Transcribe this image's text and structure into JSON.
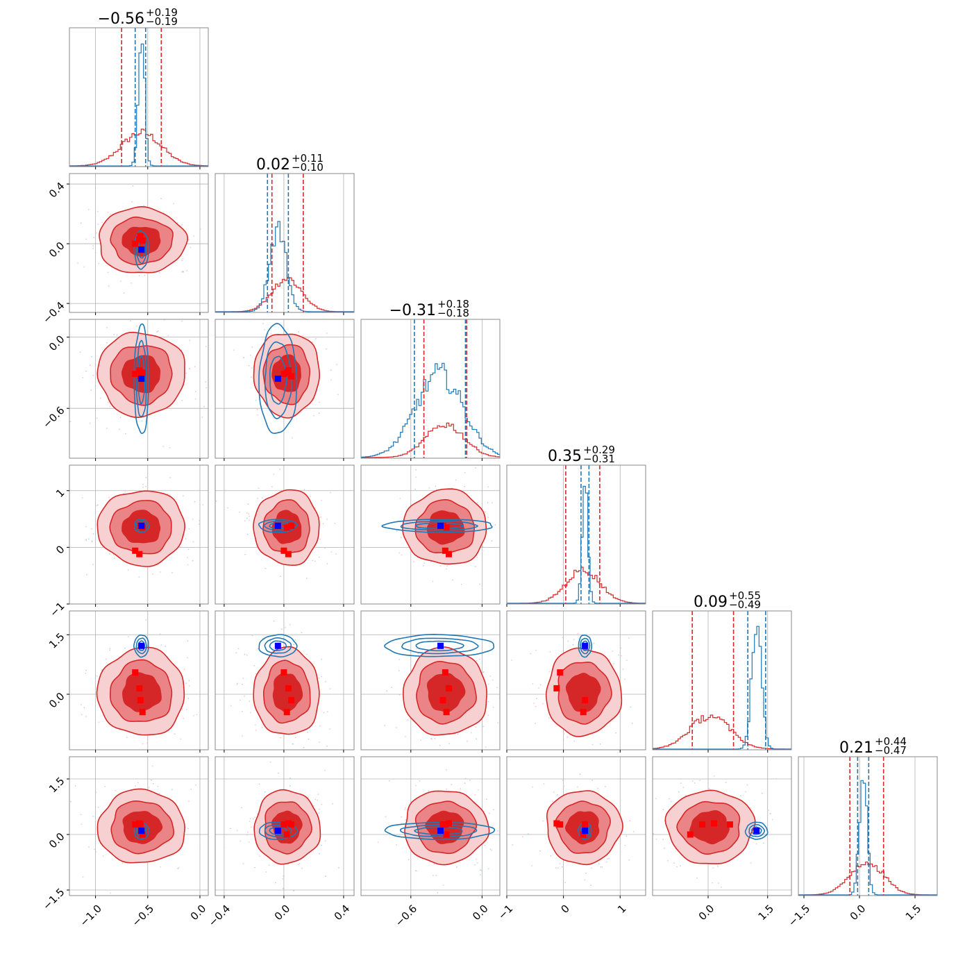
{
  "chart_data": {
    "type": "corner",
    "colors": {
      "red": "#d62728",
      "red_mid": "#ea8486",
      "red_light": "#f7d1d2",
      "blue": "#1f77b4",
      "blue_marker": "#0000ff",
      "red_marker": "#ff0000",
      "grid": "#b0b0b0"
    },
    "params": [
      {
        "range": [
          -1.25,
          0.08
        ],
        "ticks": [
          -1.0,
          -0.5,
          0.0
        ],
        "tick_labels": [
          "−1.0",
          "−0.5",
          "0.0"
        ],
        "title": {
          "median": "−0.56",
          "plus": "+0.19",
          "minus": "−0.19"
        },
        "red": {
          "mean": -0.56,
          "sd": 0.19,
          "q": [
            -0.75,
            -0.37
          ]
        },
        "blue": {
          "mean": -0.56,
          "sd": 0.03,
          "q": [
            -0.62,
            -0.52
          ]
        },
        "blue_marker": -0.56,
        "red_markers": [
          -0.62,
          -0.58,
          -0.57,
          -0.55
        ]
      },
      {
        "range": [
          -0.46,
          0.47
        ],
        "ticks": [
          -0.4,
          0.0,
          0.4
        ],
        "tick_labels": [
          "−0.4",
          "0.0",
          "0.4"
        ],
        "title": {
          "median": "0.02",
          "plus": "+0.11",
          "minus": "−0.10"
        },
        "red": {
          "mean": 0.02,
          "sd": 0.1,
          "q": [
            -0.08,
            0.13
          ]
        },
        "blue": {
          "mean": -0.04,
          "sd": 0.055,
          "q": [
            -0.11,
            0.03
          ]
        },
        "blue_marker": -0.04,
        "red_markers": [
          0.0,
          0.03,
          0.05,
          0.02
        ]
      },
      {
        "range": [
          -1.02,
          0.15
        ],
        "ticks": [
          -0.6,
          0.0
        ],
        "tick_labels": [
          "−0.6",
          "0.0"
        ],
        "title": {
          "median": "−0.31",
          "plus": "+0.18",
          "minus": "−0.18"
        },
        "red": {
          "mean": -0.31,
          "sd": 0.16,
          "q": [
            -0.49,
            -0.13
          ]
        },
        "blue": {
          "mean": -0.36,
          "sd": 0.2,
          "q": [
            -0.57,
            -0.14
          ]
        },
        "blue_marker": -0.35,
        "red_markers": [
          -0.31,
          -0.28,
          -0.33,
          -0.3
        ]
      },
      {
        "range": [
          -1.0,
          1.45
        ],
        "ticks": [
          -1,
          0,
          1
        ],
        "tick_labels": [
          "−1",
          "0",
          "1"
        ],
        "title": {
          "median": "0.35",
          "plus": "+0.29",
          "minus": "−0.31"
        },
        "red": {
          "mean": 0.35,
          "sd": 0.3,
          "q": [
            0.04,
            0.64
          ]
        },
        "blue": {
          "mean": 0.38,
          "sd": 0.05,
          "q": [
            0.31,
            0.45
          ]
        },
        "blue_marker": 0.38,
        "red_markers": [
          -0.06,
          -0.12,
          0.38,
          0.35
        ]
      },
      {
        "range": [
          -1.4,
          2.1
        ],
        "ticks": [
          0.0,
          1.5
        ],
        "tick_labels": [
          "0.0",
          "1.5"
        ],
        "title": {
          "median": "0.09",
          "plus": "+0.55",
          "minus": "−0.49"
        },
        "red": {
          "mean": 0.05,
          "sd": 0.5,
          "q": [
            -0.4,
            0.64
          ]
        },
        "blue": {
          "mean": 1.22,
          "sd": 0.12,
          "q": [
            1.0,
            1.45
          ]
        },
        "blue_marker": 1.22,
        "red_markers": [
          0.55,
          0.15,
          -0.15,
          -0.45
        ]
      },
      {
        "range": [
          -1.65,
          2.1
        ],
        "ticks": [
          -1.5,
          0.0,
          1.5
        ],
        "tick_labels": [
          "−1.5",
          "0.0",
          "1.5"
        ],
        "title": {
          "median": "0.21",
          "plus": "+0.44",
          "minus": "−0.47"
        },
        "red": {
          "mean": 0.2,
          "sd": 0.45,
          "q": [
            -0.26,
            0.65
          ]
        },
        "blue": {
          "mean": 0.1,
          "sd": 0.1,
          "q": [
            -0.05,
            0.25
          ]
        },
        "blue_marker": 0.1,
        "red_markers": [
          0.27,
          0.3,
          0.27,
          0.0
        ]
      }
    ],
    "y_tick_labels": [
      null,
      {
        "ticks": [
          0.4,
          0.0,
          -0.4
        ],
        "labels": [
          "0.4",
          "0.0",
          "−0.4"
        ]
      },
      {
        "ticks": [
          0.0,
          -0.6
        ],
        "labels": [
          "0.0",
          "−0.6"
        ]
      },
      {
        "ticks": [
          1,
          0,
          -1
        ],
        "labels": [
          "1",
          "0",
          "−1"
        ]
      },
      {
        "ticks": [
          1.5,
          0.0
        ],
        "labels": [
          "1.5",
          "0.0"
        ]
      },
      {
        "ticks": [
          1.5,
          0.0,
          -1.5
        ],
        "labels": [
          "1.5",
          "0.0",
          "−1.5"
        ]
      }
    ]
  }
}
